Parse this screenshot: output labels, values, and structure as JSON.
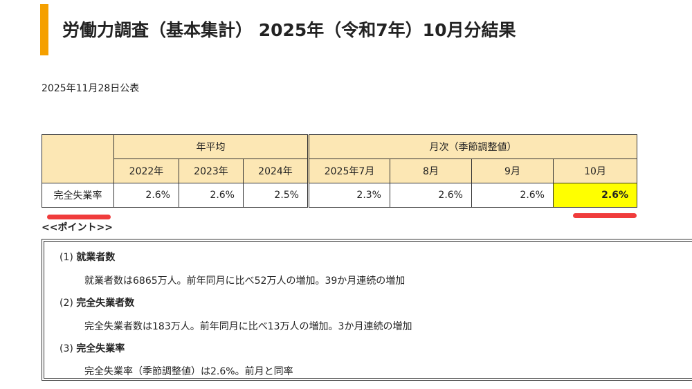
{
  "title": "労働力調査（基本集計） 2025年（令和7年）10月分結果",
  "published_date": "2025年11月28日公表",
  "colors": {
    "accent_bar": "#f5a000",
    "header_fill": "#fce7b4",
    "highlight_fill": "#ffff00",
    "underline_mark": "#f03c3c"
  },
  "table": {
    "group_headers": {
      "annual": "年平均",
      "monthly": "月次（季節調整値）"
    },
    "col_headers": [
      "2022年",
      "2023年",
      "2024年",
      "2025年7月",
      "8月",
      "9月",
      "10月"
    ],
    "row_label": "完全失業率",
    "values": [
      "2.6%",
      "2.6%",
      "2.5%",
      "2.3%",
      "2.6%",
      "2.6%",
      "2.6%"
    ]
  },
  "points_label": "<<ポイント>>",
  "points": [
    {
      "number": "(1)",
      "heading": "就業者数",
      "body": "就業者数は6865万人。前年同月に比べ52万人の増加。39か月連続の増加"
    },
    {
      "number": "(2)",
      "heading": "完全失業者数",
      "body": "完全失業者数は183万人。前年同月に比べ13万人の増加。3か月連続の増加"
    },
    {
      "number": "(3)",
      "heading": "完全失業率",
      "body": "完全失業率（季節調整値）は2.6%。前月と同率"
    }
  ]
}
